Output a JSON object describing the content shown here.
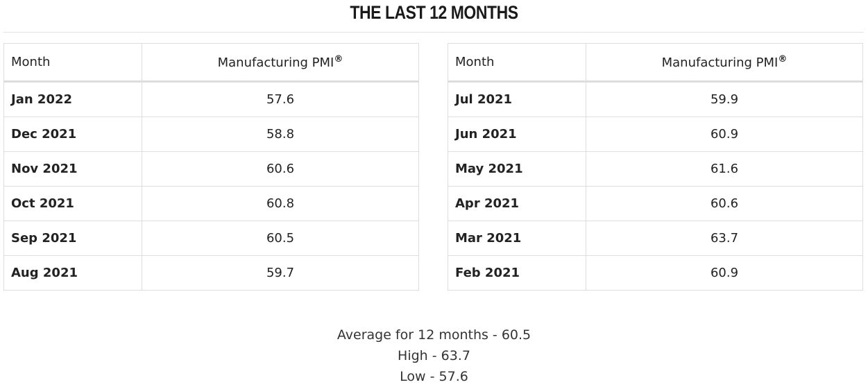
{
  "title": "THE LAST 12 MONTHS",
  "tables": [
    {
      "header": [
        "Month",
        {
          "text": "Manufacturing PMI",
          "sup": "®"
        }
      ],
      "rows": [
        [
          "Jan 2022",
          57.6
        ],
        [
          "Dec 2021",
          58.8
        ],
        [
          "Nov 2021",
          60.6
        ],
        [
          "Oct 2021",
          60.8
        ],
        [
          "Sep 2021",
          60.5
        ],
        [
          "Aug 2021",
          59.7
        ]
      ]
    },
    {
      "header": [
        "Month",
        {
          "text": "Manufacturing PMI",
          "sup": "®"
        }
      ],
      "rows": [
        [
          "Jul 2021",
          59.9
        ],
        [
          "Jun 2021",
          60.9
        ],
        [
          "May 2021",
          61.6
        ],
        [
          "Apr 2021",
          60.6
        ],
        [
          "Mar 2021",
          63.7
        ],
        [
          "Feb 2021",
          60.9
        ]
      ]
    }
  ],
  "summary": [
    "Average for 12 months - 60.5",
    "High - 63.7",
    "Low - 57.6"
  ]
}
